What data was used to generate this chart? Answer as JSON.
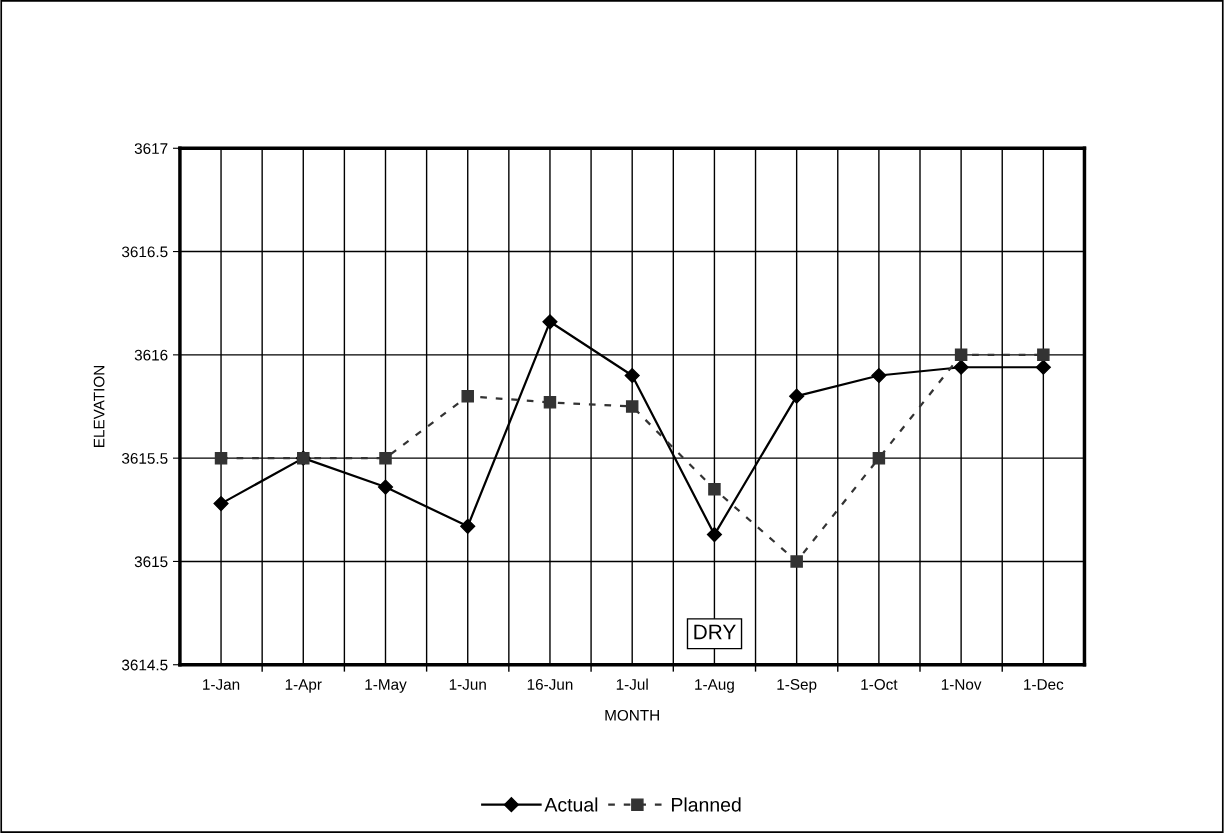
{
  "chart_data": {
    "type": "line",
    "xlabel": "MONTH",
    "ylabel": "ELEVATION",
    "categories": [
      "1-Jan",
      "1-Apr",
      "1-May",
      "1-Jun",
      "16-Jun",
      "1-Jul",
      "1-Aug",
      "1-Sep",
      "1-Oct",
      "1-Nov",
      "1-Dec"
    ],
    "series": [
      {
        "name": "Actual",
        "color": "#000000",
        "marker": "diamond",
        "line_style": "solid",
        "values": [
          3615.28,
          3615.5,
          3615.36,
          3615.17,
          3616.16,
          3615.9,
          3615.13,
          3615.8,
          3615.9,
          3615.94,
          3615.94
        ]
      },
      {
        "name": "Planned",
        "color": "#333333",
        "marker": "square",
        "line_style": "dashed",
        "values": [
          3615.5,
          3615.5,
          3615.5,
          3615.8,
          3615.77,
          3615.75,
          3615.35,
          3615.0,
          3615.5,
          3616.0,
          3616.0
        ]
      }
    ],
    "ylim": [
      3614.5,
      3617
    ],
    "yticks": [
      3614.5,
      3615,
      3615.5,
      3616,
      3616.5,
      3617
    ],
    "grid": true,
    "legend": "bottom",
    "annotations": [
      "DRY"
    ]
  }
}
